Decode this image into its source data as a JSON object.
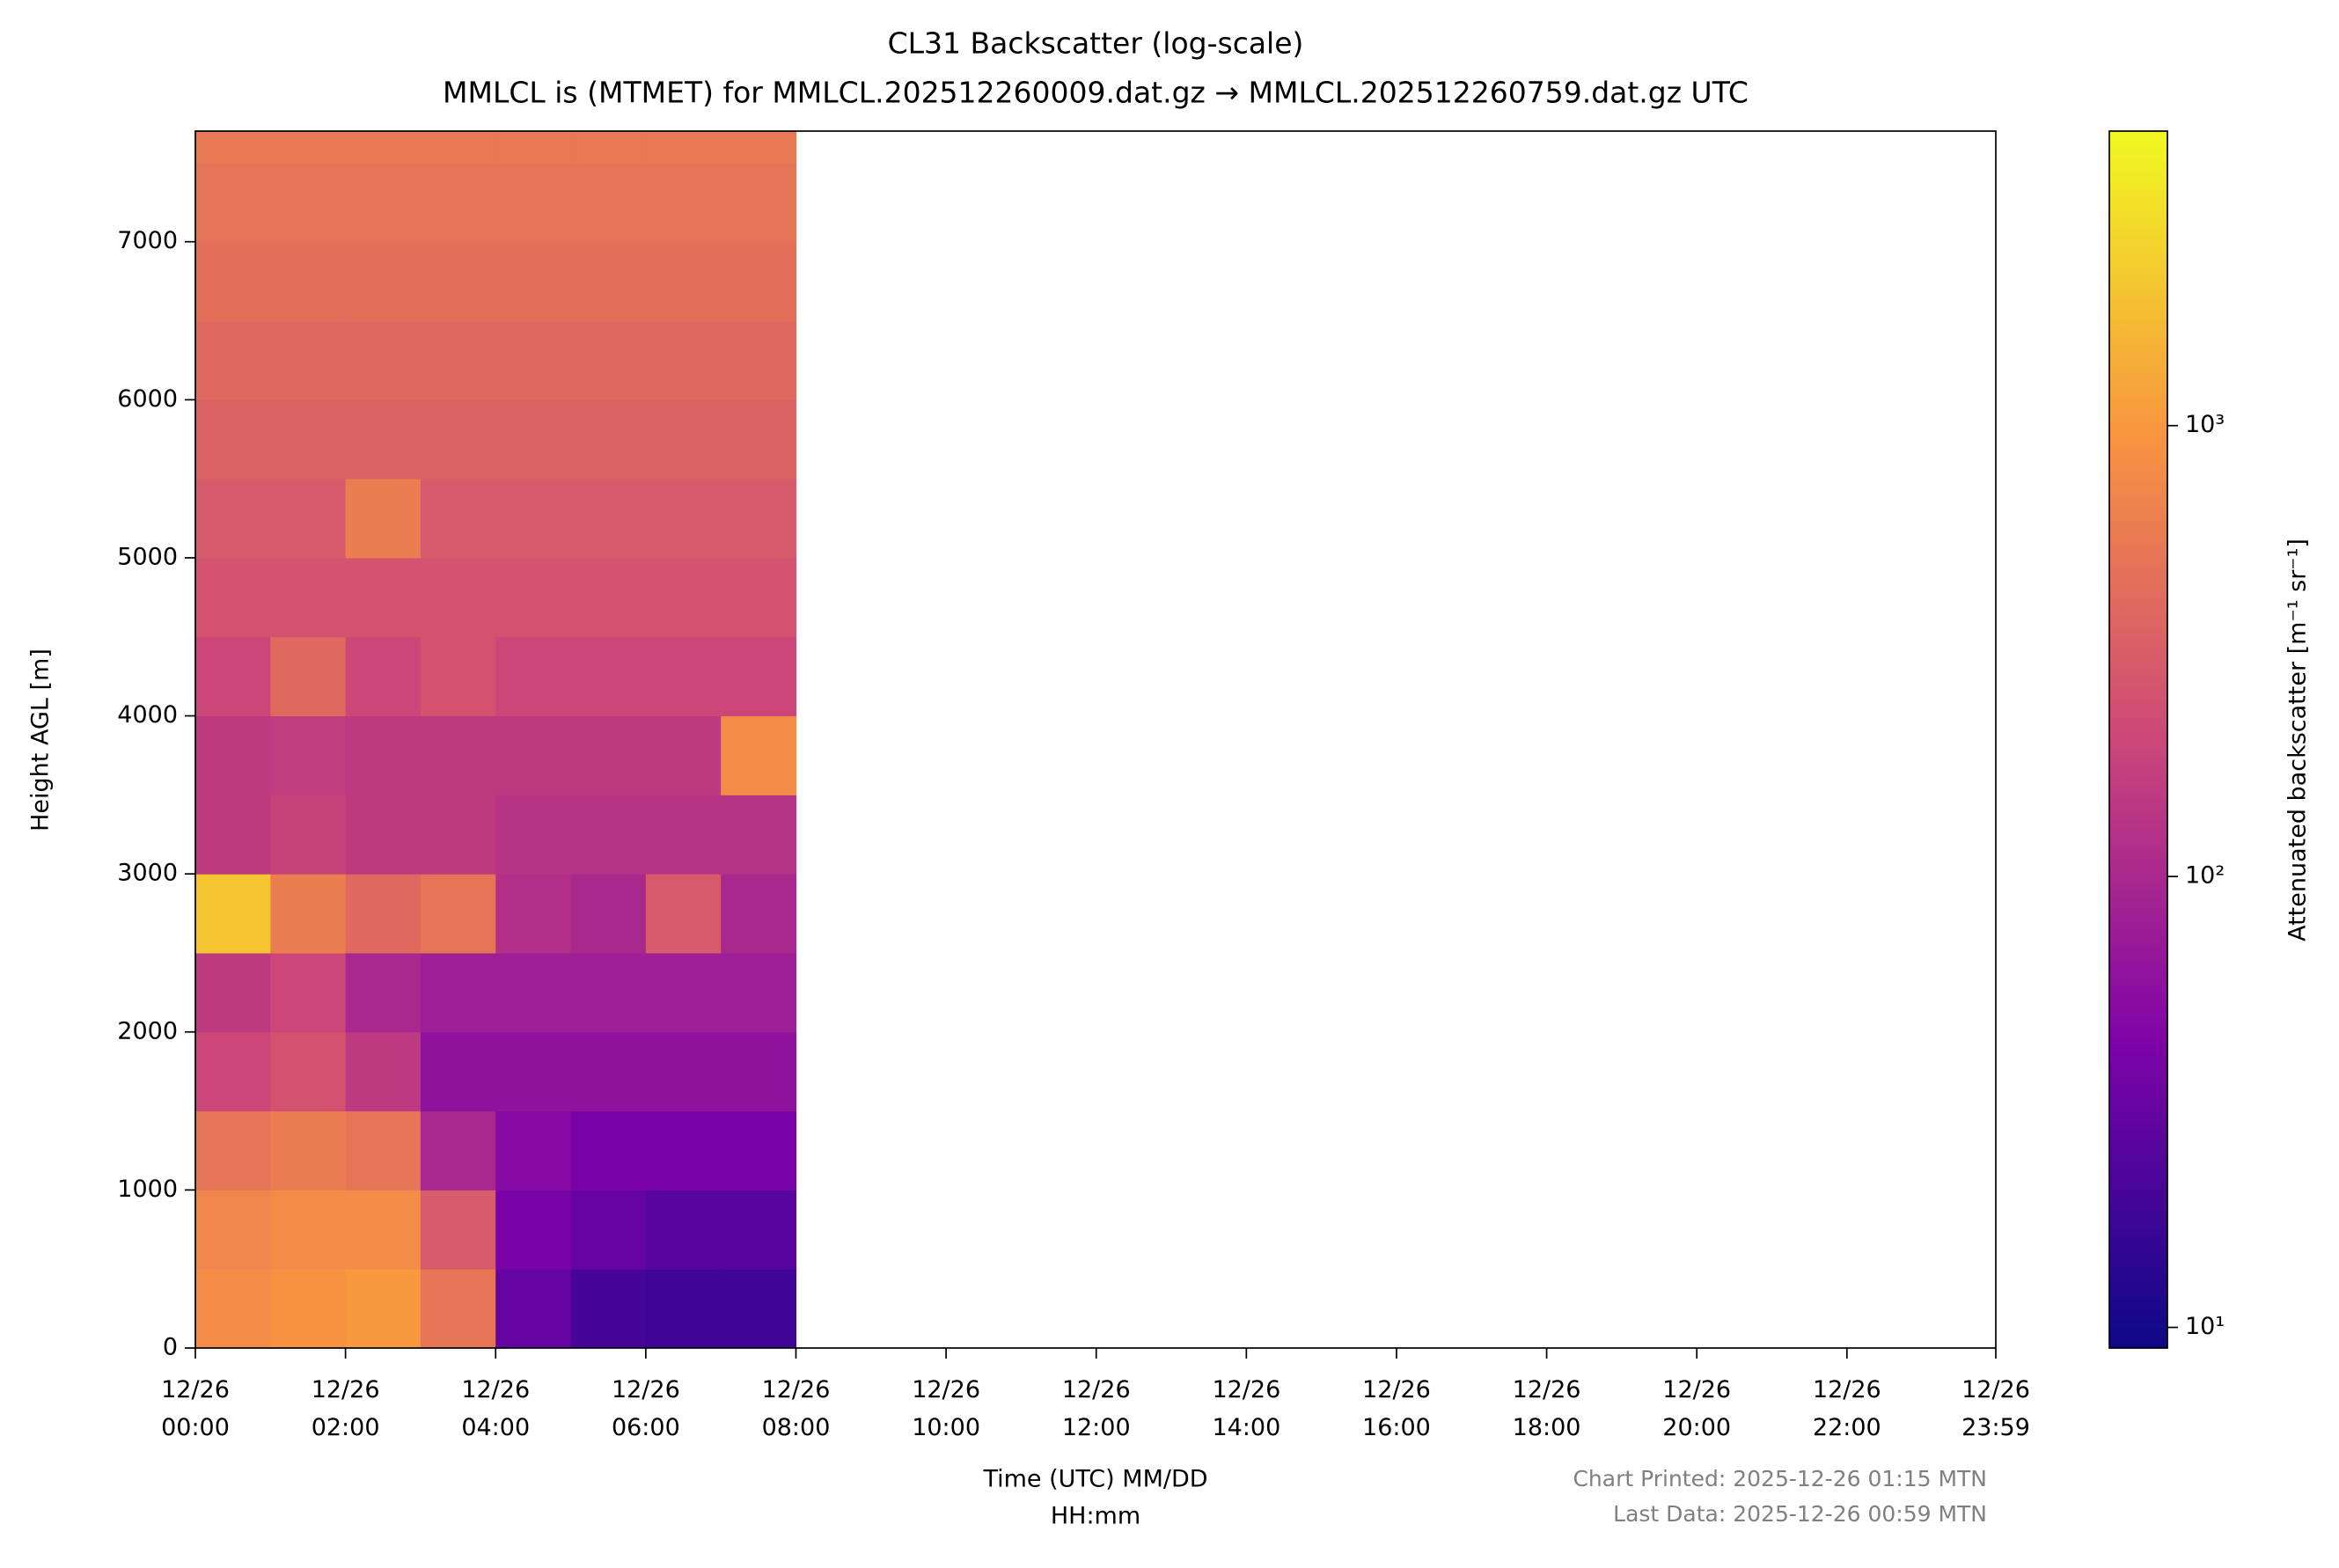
{
  "chart_data": {
    "type": "heatmap",
    "title": "CL31 Backscatter (log-scale)",
    "subtitle": "MMLCL is (MTMET) for MMLCL.202512260009.dat.gz → MMLCL.202512260759.dat.gz UTC",
    "xlabel": [
      "Time (UTC) MM/DD",
      "HH:mm"
    ],
    "ylabel": "Height AGL [m]",
    "colorbar_label": "Attenuated backscatter [m⁻¹ sr⁻¹]",
    "notes": [
      "Chart Printed: 2025-12-26 01:15 MTN",
      "Last Data: 2025-12-26 00:59 MTN"
    ],
    "colormap": "plasma",
    "log_color": true,
    "clim": [
      9,
      4500
    ],
    "cticks": [
      {
        "value": 10,
        "label": "10¹"
      },
      {
        "value": 100,
        "label": "10²"
      },
      {
        "value": 1000,
        "label": "10³"
      }
    ],
    "xlim": [
      0,
      23.983
    ],
    "xticks": [
      {
        "value": 0,
        "label": "12/26\n00:00"
      },
      {
        "value": 2,
        "label": "12/26\n02:00"
      },
      {
        "value": 4,
        "label": "12/26\n04:00"
      },
      {
        "value": 6,
        "label": "12/26\n06:00"
      },
      {
        "value": 8,
        "label": "12/26\n08:00"
      },
      {
        "value": 10,
        "label": "12/26\n10:00"
      },
      {
        "value": 12,
        "label": "12/26\n12:00"
      },
      {
        "value": 14,
        "label": "12/26\n14:00"
      },
      {
        "value": 16,
        "label": "12/26\n16:00"
      },
      {
        "value": 18,
        "label": "12/26\n18:00"
      },
      {
        "value": 20,
        "label": "12/26\n20:00"
      },
      {
        "value": 22,
        "label": "12/26\n22:00"
      },
      {
        "value": 23.983,
        "label": "12/26\n23:59"
      }
    ],
    "ylim": [
      0,
      7700
    ],
    "yticks": [
      0,
      1000,
      2000,
      3000,
      4000,
      5000,
      6000,
      7000
    ],
    "x_edges": [
      0,
      1,
      2,
      3,
      4,
      5,
      6,
      7,
      8
    ],
    "y_edges": [
      0,
      500,
      1000,
      1500,
      2000,
      2500,
      3000,
      3500,
      4000,
      4500,
      5000,
      5500,
      6000,
      6500,
      7000,
      7500,
      7700
    ],
    "z": [
      [
        800,
        700,
        500,
        200,
        150,
        2000,
        150,
        150,
        200,
        250,
        300,
        350,
        400,
        450,
        500,
        550
      ],
      [
        900,
        800,
        600,
        250,
        200,
        600,
        180,
        160,
        400,
        250,
        300,
        350,
        400,
        450,
        500,
        550
      ],
      [
        1000,
        800,
        500,
        150,
        100,
        400,
        150,
        150,
        200,
        250,
        600,
        350,
        400,
        450,
        500,
        550
      ],
      [
        500,
        300,
        100,
        60,
        80,
        500,
        150,
        150,
        250,
        250,
        300,
        350,
        400,
        450,
        500,
        550
      ],
      [
        30,
        40,
        50,
        60,
        80,
        120,
        130,
        150,
        200,
        250,
        300,
        350,
        400,
        450,
        500,
        550
      ],
      [
        20,
        30,
        40,
        60,
        80,
        100,
        130,
        150,
        200,
        250,
        300,
        350,
        400,
        450,
        500,
        550
      ],
      [
        18,
        25,
        40,
        60,
        80,
        300,
        130,
        150,
        200,
        250,
        300,
        350,
        400,
        450,
        500,
        550
      ],
      [
        18,
        25,
        40,
        60,
        80,
        100,
        130,
        800,
        200,
        250,
        300,
        350,
        400,
        450,
        500,
        550
      ]
    ]
  }
}
